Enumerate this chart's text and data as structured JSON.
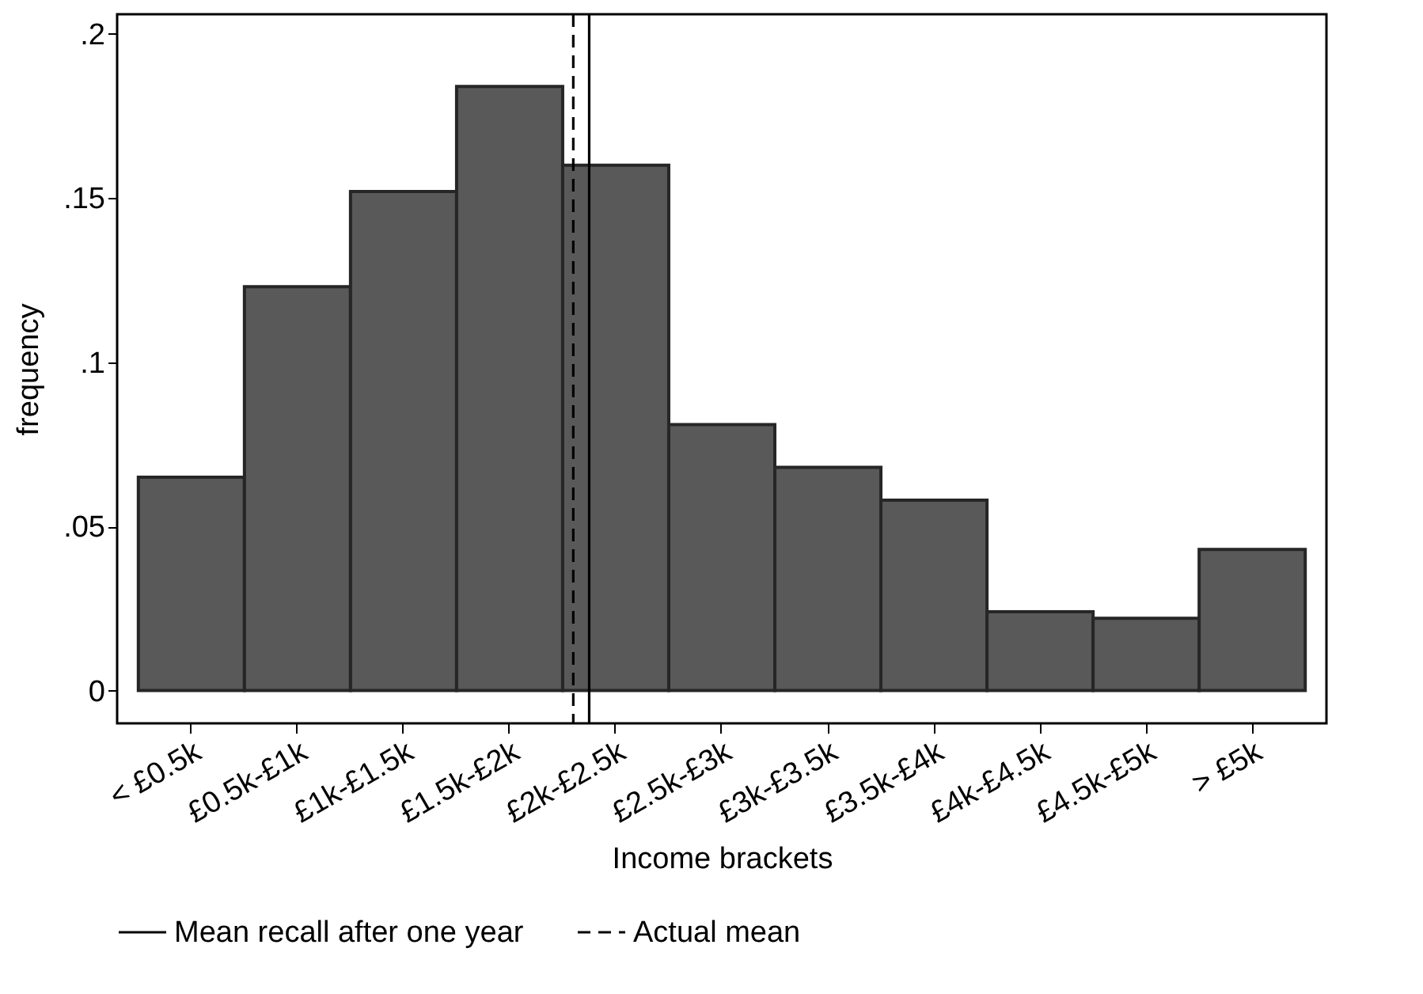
{
  "chart_data": {
    "type": "bar",
    "xlabel": "Income brackets",
    "ylabel": "frequency",
    "categories": [
      "< £0.5k",
      "£0.5k-£1k",
      "£1k-£1.5k",
      "£1.5k-£2k",
      "£2k-£2.5k",
      "£2.5k-£3k",
      "£3k-£3.5k",
      "£3.5k-£4k",
      "£4k-£4.5k",
      "£4.5k-£5k",
      "> £5k"
    ],
    "values": [
      0.065,
      0.123,
      0.152,
      0.184,
      0.16,
      0.081,
      0.068,
      0.058,
      0.024,
      0.022,
      0.043
    ],
    "color": "#595959",
    "ylim": [
      -0.01,
      0.206
    ],
    "yticks": [
      {
        "value": 0,
        "label": "0"
      },
      {
        "value": 0.05,
        "label": ".05"
      },
      {
        "value": 0.1,
        "label": ".1"
      },
      {
        "value": 0.15,
        "label": ".15"
      },
      {
        "value": 0.2,
        "label": ".2"
      }
    ],
    "ref_lines": [
      {
        "axis": "x",
        "value": "£2k-£2.5k",
        "label": "Mean recall after one year",
        "line_style": "solid",
        "color": "#000000"
      },
      {
        "axis": "x",
        "value": "£2k-£2.5k",
        "label": "Actual mean",
        "line_style": "dashed",
        "color": "#000000"
      }
    ],
    "grid": false,
    "legend": "bottom"
  }
}
